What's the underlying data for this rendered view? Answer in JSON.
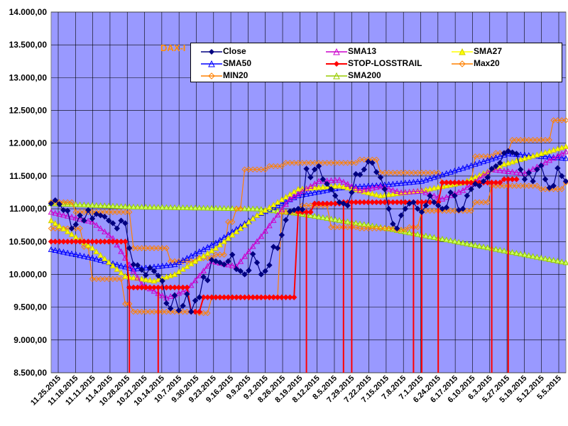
{
  "chart_data": {
    "type": "line",
    "title": "DAX-I",
    "xlabel": "",
    "ylabel": "",
    "ylim": [
      8500,
      14000
    ],
    "ytick_labels": [
      "8.500,00",
      "9.000,00",
      "9.500,00",
      "10.000,00",
      "10.500,00",
      "11.000,00",
      "11.500,00",
      "12.000,00",
      "12.500,00",
      "13.000,00",
      "13.500,00",
      "14.000,00"
    ],
    "yticks": [
      8500,
      9000,
      9500,
      10000,
      10500,
      11000,
      11500,
      12000,
      12500,
      13000,
      13500,
      14000
    ],
    "x_labels": [
      "11.25.2015",
      "11.18.2015",
      "11.11.2015",
      "11.4.2015",
      "10.28.2015",
      "10.21.2015",
      "10.14.2015",
      "10.7.2015",
      "9.30.2015",
      "9.23.2015",
      "9.16.2015",
      "9.9.2015",
      "9.2.2015",
      "8.26.2015",
      "8.19.2015",
      "8.12.2015",
      "8.5.2015",
      "7.29.2015",
      "7.22.2015",
      "7.15.2015",
      "7.8.2015",
      "7.1.2015",
      "6.24.2015",
      "6.17.2015",
      "6.10.2015",
      "6.3.2015",
      "5.27.2015",
      "5.19.2015",
      "5.12.2015",
      "5.5.2015"
    ],
    "n_points": 146,
    "series": [
      {
        "name": "Close",
        "color": "#000080",
        "marker": "diamond",
        "values": [
          [
            0,
            11080
          ],
          [
            2,
            11130
          ],
          [
            4,
            11070
          ],
          [
            6,
            10980
          ],
          [
            8,
            10970
          ],
          [
            10,
            10700
          ],
          [
            12,
            10760
          ],
          [
            14,
            10900
          ],
          [
            16,
            10820
          ],
          [
            18,
            10980
          ],
          [
            20,
            10850
          ],
          [
            22,
            10920
          ],
          [
            24,
            10900
          ],
          [
            26,
            10880
          ],
          [
            28,
            10820
          ],
          [
            30,
            10780
          ],
          [
            32,
            10700
          ],
          [
            34,
            10820
          ],
          [
            36,
            10780
          ],
          [
            38,
            10400
          ],
          [
            40,
            10150
          ],
          [
            42,
            10140
          ],
          [
            44,
            10070
          ],
          [
            46,
            9990
          ],
          [
            48,
            10100
          ],
          [
            50,
            10050
          ],
          [
            52,
            9980
          ],
          [
            54,
            9900
          ],
          [
            56,
            9560
          ],
          [
            58,
            9480
          ],
          [
            60,
            9680
          ],
          [
            62,
            9450
          ],
          [
            64,
            9520
          ],
          [
            66,
            9700
          ],
          [
            68,
            9430
          ],
          [
            70,
            9600
          ],
          [
            72,
            9650
          ],
          [
            74,
            9960
          ],
          [
            76,
            9910
          ],
          [
            78,
            10220
          ],
          [
            80,
            10200
          ],
          [
            82,
            10180
          ],
          [
            84,
            10150
          ],
          [
            86,
            10200
          ],
          [
            88,
            10300
          ],
          [
            90,
            10080
          ],
          [
            92,
            10050
          ],
          [
            94,
            10000
          ],
          [
            96,
            10060
          ],
          [
            98,
            10310
          ],
          [
            100,
            10180
          ],
          [
            102,
            10000
          ],
          [
            104,
            10050
          ],
          [
            106,
            10140
          ],
          [
            108,
            10420
          ],
          [
            110,
            10400
          ],
          [
            112,
            10600
          ],
          [
            114,
            10830
          ],
          [
            116,
            10960
          ],
          [
            118,
            10980
          ],
          [
            120,
            11000
          ],
          [
            122,
            10990
          ],
          [
            124,
            11610
          ],
          [
            126,
            11480
          ],
          [
            128,
            11600
          ],
          [
            130,
            11650
          ],
          [
            132,
            11450
          ],
          [
            134,
            11380
          ],
          [
            136,
            11300
          ],
          [
            138,
            11200
          ],
          [
            140,
            11100
          ],
          [
            142,
            11080
          ],
          [
            144,
            11050
          ],
          [
            146,
            11250
          ],
          [
            148,
            11530
          ],
          [
            150,
            11520
          ],
          [
            152,
            11600
          ],
          [
            154,
            11720
          ],
          [
            156,
            11700
          ],
          [
            158,
            11560
          ],
          [
            160,
            11480
          ],
          [
            162,
            11300
          ],
          [
            164,
            11000
          ],
          [
            166,
            10770
          ],
          [
            168,
            10700
          ],
          [
            170,
            10900
          ],
          [
            172,
            11000
          ],
          [
            174,
            11080
          ],
          [
            176,
            11100
          ],
          [
            178,
            11000
          ],
          [
            180,
            10950
          ],
          [
            182,
            11050
          ],
          [
            184,
            11200
          ],
          [
            186,
            11100
          ],
          [
            188,
            11050
          ],
          [
            190,
            11000
          ],
          [
            192,
            11020
          ],
          [
            194,
            11250
          ],
          [
            196,
            11200
          ],
          [
            198,
            10980
          ],
          [
            200,
            11000
          ],
          [
            202,
            11200
          ],
          [
            204,
            11300
          ],
          [
            206,
            11380
          ],
          [
            208,
            11350
          ],
          [
            210,
            11420
          ],
          [
            212,
            11480
          ],
          [
            214,
            11610
          ],
          [
            216,
            11650
          ],
          [
            218,
            11700
          ],
          [
            220,
            11850
          ],
          [
            222,
            11880
          ],
          [
            224,
            11860
          ],
          [
            226,
            11840
          ],
          [
            228,
            11600
          ],
          [
            230,
            11450
          ],
          [
            232,
            11550
          ],
          [
            234,
            11420
          ],
          [
            236,
            11600
          ],
          [
            238,
            11660
          ],
          [
            240,
            11450
          ],
          [
            242,
            11320
          ],
          [
            244,
            11350
          ],
          [
            246,
            11620
          ],
          [
            248,
            11500
          ],
          [
            250,
            11420
          ]
        ]
      },
      {
        "name": "SMA13",
        "color": "#cc00cc",
        "marker": "triangle",
        "values": []
      },
      {
        "name": "SMA27",
        "color": "#ffff00",
        "marker": "triangle",
        "values": []
      },
      {
        "name": "SMA50",
        "color": "#0000ff",
        "marker": "triangle",
        "values": []
      },
      {
        "name": "STOP-LOSSTRAIL",
        "color": "#ff0000",
        "marker": "diamond",
        "values": []
      },
      {
        "name": "Max20",
        "color": "#ff8000",
        "marker": "diamond",
        "values": []
      },
      {
        "name": "MIN20",
        "color": "#ff8000",
        "marker": "diamond",
        "values": []
      },
      {
        "name": "SMA200",
        "color": "#99cc00",
        "marker": "triangle",
        "values": []
      }
    ]
  },
  "legend": {
    "items": [
      {
        "label": "Close",
        "color": "#000080",
        "marker": "diamond"
      },
      {
        "label": "SMA13",
        "color": "#cc00cc",
        "marker": "triangle"
      },
      {
        "label": "SMA27",
        "color": "#ffff00",
        "marker": "triangle"
      },
      {
        "label": "SMA50",
        "color": "#0000ff",
        "marker": "triangle"
      },
      {
        "label": "STOP-LOSSTRAIL",
        "color": "#ff0000",
        "marker": "diamond"
      },
      {
        "label": "Max20",
        "color": "#ff8000",
        "marker": "diamond"
      },
      {
        "label": "MIN20",
        "color": "#ff8000",
        "marker": "diamond"
      },
      {
        "label": "SMA200",
        "color": "#99cc00",
        "marker": "triangle"
      }
    ]
  },
  "title_visible": "DAX-I"
}
